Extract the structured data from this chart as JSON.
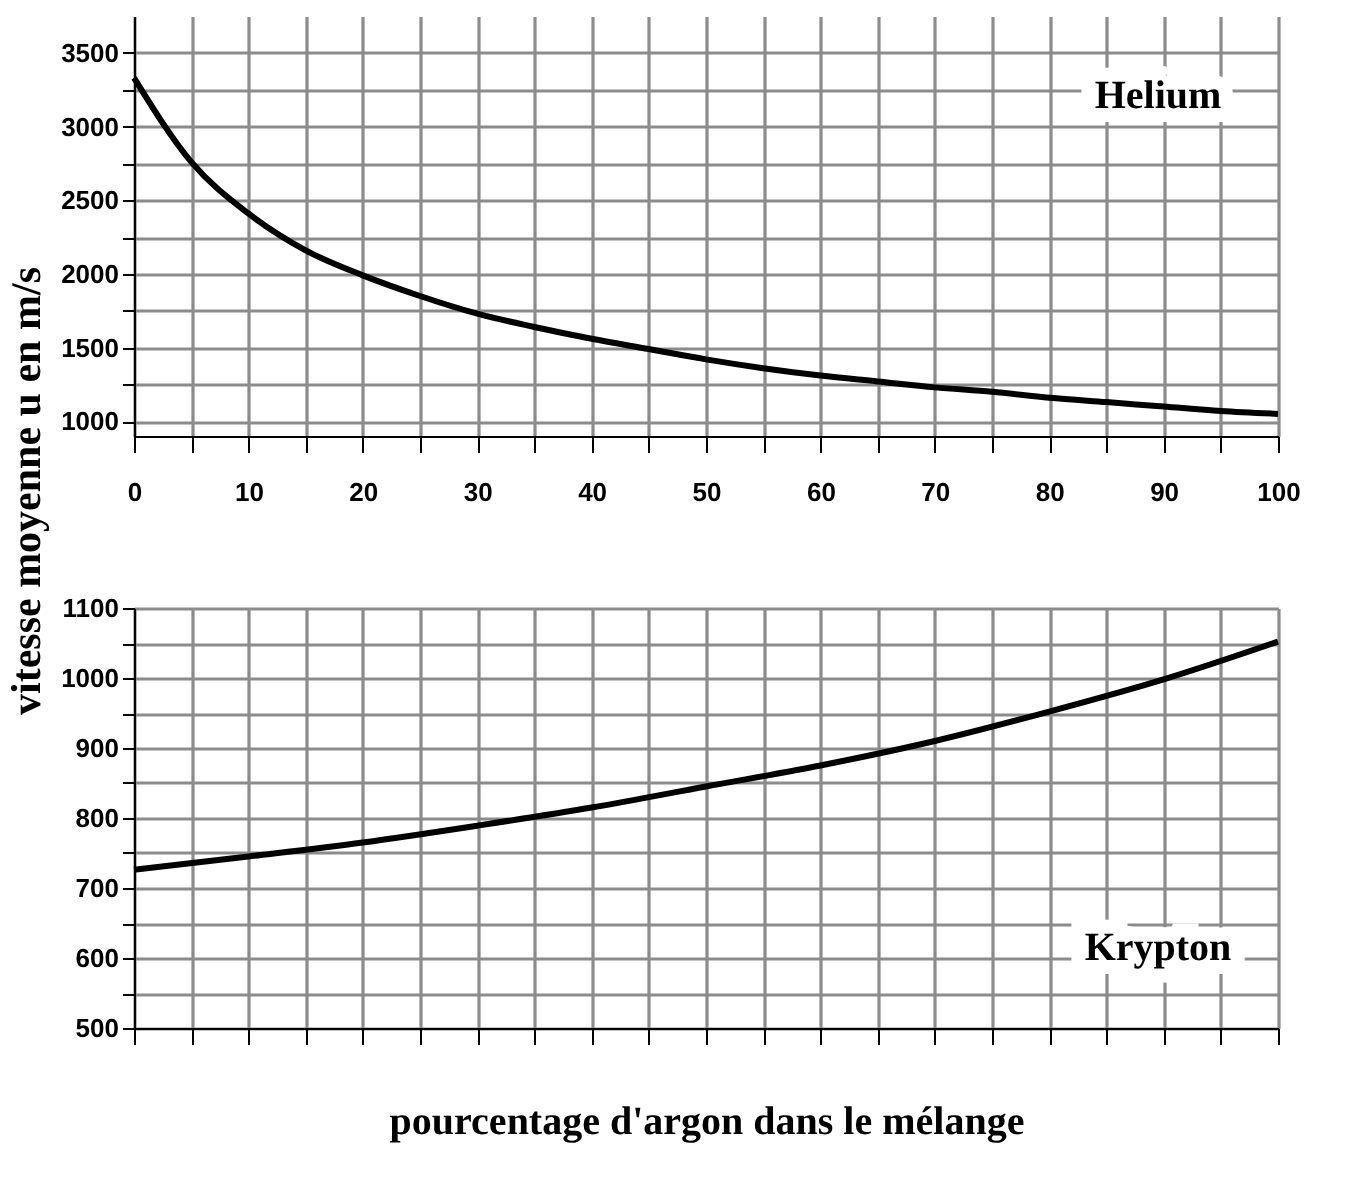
{
  "chart_data": [
    {
      "type": "line",
      "ylabel": "vitesse moyenne u en m/s",
      "annotations": [
        "Helium"
      ],
      "grid": true,
      "x": [
        0,
        5,
        10,
        15,
        20,
        25,
        30,
        35,
        40,
        45,
        50,
        55,
        60,
        65,
        70,
        75,
        80,
        85,
        90,
        95,
        100
      ],
      "series": [
        {
          "color": "#000000",
          "values": [
            3330,
            2760,
            2410,
            2160,
            1990,
            1850,
            1730,
            1640,
            1560,
            1490,
            1420,
            1360,
            1310,
            1270,
            1230,
            1200,
            1160,
            1130,
            1100,
            1070,
            1050
          ]
        }
      ],
      "xlim": [
        0,
        100
      ],
      "xticks": [
        0,
        {
          "value": 5,
          "label": null
        },
        10,
        {
          "value": 15,
          "label": null
        },
        20,
        {
          "value": 25,
          "label": null
        },
        30,
        {
          "value": 35,
          "label": null
        },
        40,
        {
          "value": 45,
          "label": null
        },
        50,
        {
          "value": 55,
          "label": null
        },
        60,
        {
          "value": 65,
          "label": null
        },
        70,
        {
          "value": 75,
          "label": null
        },
        80,
        {
          "value": 85,
          "label": null
        },
        90,
        {
          "value": 95,
          "label": null
        },
        100
      ],
      "ylim": [
        900,
        3750
      ],
      "yticks": [
        1000,
        {
          "value": 1250,
          "label": null
        },
        1500,
        {
          "value": 1750,
          "label": null
        },
        2000,
        {
          "value": 2250,
          "label": null
        },
        2500,
        {
          "value": 2750,
          "label": null
        },
        3000,
        {
          "value": 3250,
          "label": null
        },
        3500
      ]
    },
    {
      "type": "line",
      "xlabel": "pourcentage d'argon dans le mélange",
      "annotations": [
        "Krypton"
      ],
      "grid": true,
      "tick_labels": "y",
      "x": [
        0,
        10,
        20,
        30,
        40,
        50,
        60,
        70,
        80,
        90,
        100
      ],
      "series": [
        {
          "color": "#000000",
          "values": [
            726,
            745,
            765,
            789,
            815,
            845,
            875,
            910,
            952,
            998,
            1052
          ]
        }
      ],
      "xlim": [
        0,
        100
      ],
      "xticks": [
        0,
        {
          "value": 5,
          "label": null
        },
        10,
        {
          "value": 15,
          "label": null
        },
        20,
        {
          "value": 25,
          "label": null
        },
        30,
        {
          "value": 35,
          "label": null
        },
        40,
        {
          "value": 45,
          "label": null
        },
        50,
        {
          "value": 55,
          "label": null
        },
        60,
        {
          "value": 65,
          "label": null
        },
        70,
        {
          "value": 75,
          "label": null
        },
        80,
        {
          "value": 85,
          "label": null
        },
        90,
        {
          "value": 95,
          "label": null
        },
        100
      ],
      "ylim": [
        500,
        1100
      ],
      "yticks": [
        500,
        {
          "value": 550,
          "label": null
        },
        600,
        {
          "value": 650,
          "label": null
        },
        700,
        {
          "value": 750,
          "label": null
        },
        800,
        {
          "value": 850,
          "label": null
        },
        900,
        {
          "value": 950,
          "label": null
        },
        1000,
        {
          "value": 1050,
          "label": null
        },
        1100
      ]
    }
  ]
}
